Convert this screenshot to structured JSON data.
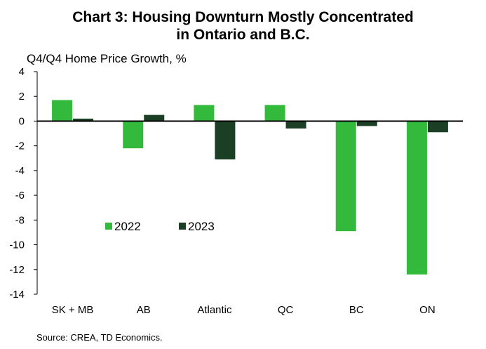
{
  "chart_data": {
    "type": "bar",
    "title": [
      "Chart 3: Housing Downturn Mostly Concentrated",
      "in Ontario and B.C."
    ],
    "ylabel": "Q4/Q4 Home Price Growth, %",
    "categories": [
      "SK + MB",
      "AB",
      "Atlantic",
      "QC",
      "BC",
      "ON"
    ],
    "series": [
      {
        "name": "2022",
        "color": "#33b93b",
        "values": [
          1.7,
          -2.2,
          1.3,
          1.3,
          -8.9,
          -12.4
        ]
      },
      {
        "name": "2023",
        "color": "#1b3f24",
        "values": [
          0.2,
          0.5,
          -3.1,
          -0.6,
          -0.4,
          -0.9
        ]
      }
    ],
    "ylim": [
      -14,
      4
    ],
    "yticks": [
      4,
      2,
      0,
      -2,
      -4,
      -6,
      -8,
      -10,
      -12,
      -14
    ],
    "grid": false,
    "legend": "inside-lower-left"
  },
  "source": "Source: CREA, TD Economics."
}
